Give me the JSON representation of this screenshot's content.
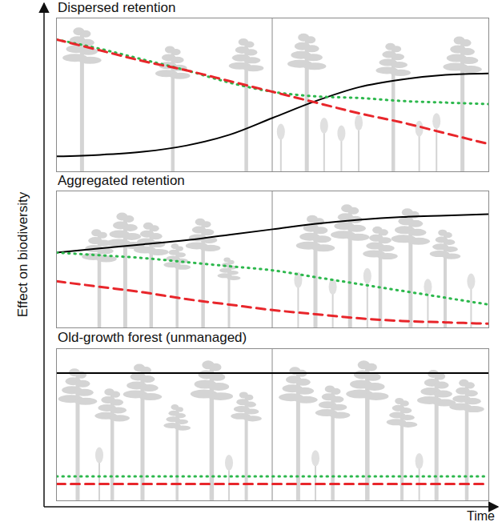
{
  "ylabel": "Effect on biodiversity",
  "xlabel": "Time",
  "chart_data": [
    {
      "type": "line",
      "title": "Dispersed retention",
      "x": [
        0,
        1,
        2,
        3,
        4,
        5,
        6,
        7,
        8,
        9,
        10
      ],
      "xlim": [
        0,
        10
      ],
      "ylim": [
        0,
        100
      ],
      "tick_labels": false,
      "series": [
        {
          "color": "#000000",
          "line_style": "solid",
          "values": [
            10,
            11,
            13,
            17,
            24,
            35,
            46,
            55,
            60,
            63,
            64
          ]
        },
        {
          "color": "#2db84d",
          "line_style": "dotted",
          "values": [
            86,
            80,
            73,
            66,
            58,
            52,
            49,
            48,
            46,
            45,
            44
          ]
        },
        {
          "color": "#e8262b",
          "line_style": "dashed",
          "values": [
            86,
            79,
            72,
            66,
            59,
            52,
            45,
            38,
            32,
            25,
            18
          ]
        }
      ]
    },
    {
      "type": "line",
      "title": "Aggregated retention",
      "x": [
        0,
        1,
        2,
        3,
        4,
        5,
        6,
        7,
        8,
        9,
        10
      ],
      "xlim": [
        0,
        10
      ],
      "ylim": [
        0,
        100
      ],
      "tick_labels": false,
      "series": [
        {
          "color": "#000000",
          "line_style": "solid",
          "values": [
            55,
            58,
            61,
            64,
            68,
            72,
            76,
            79,
            81,
            82,
            83
          ]
        },
        {
          "color": "#2db84d",
          "line_style": "dotted",
          "values": [
            55,
            53,
            51,
            48,
            45,
            42,
            37,
            32,
            27,
            22,
            17
          ]
        },
        {
          "color": "#e8262b",
          "line_style": "dashed",
          "values": [
            34,
            30,
            26,
            21,
            17,
            13,
            10,
            7,
            5,
            4,
            3
          ]
        }
      ]
    },
    {
      "type": "line",
      "title": "Old-growth forest (unmanaged)",
      "x": [
        0,
        1,
        2,
        3,
        4,
        5,
        6,
        7,
        8,
        9,
        10
      ],
      "xlim": [
        0,
        10
      ],
      "ylim": [
        0,
        100
      ],
      "tick_labels": false,
      "series": [
        {
          "color": "#000000",
          "line_style": "solid",
          "values": [
            84,
            84,
            84,
            84,
            84,
            84,
            84,
            84,
            84,
            84,
            84
          ]
        },
        {
          "color": "#2db84d",
          "line_style": "dotted",
          "values": [
            16,
            16,
            16,
            16,
            16,
            16,
            16,
            16,
            16,
            16,
            16
          ]
        },
        {
          "color": "#e8262b",
          "line_style": "dashed",
          "values": [
            11,
            11,
            11,
            11,
            11,
            11,
            11,
            11,
            11,
            11,
            11
          ]
        }
      ]
    }
  ]
}
